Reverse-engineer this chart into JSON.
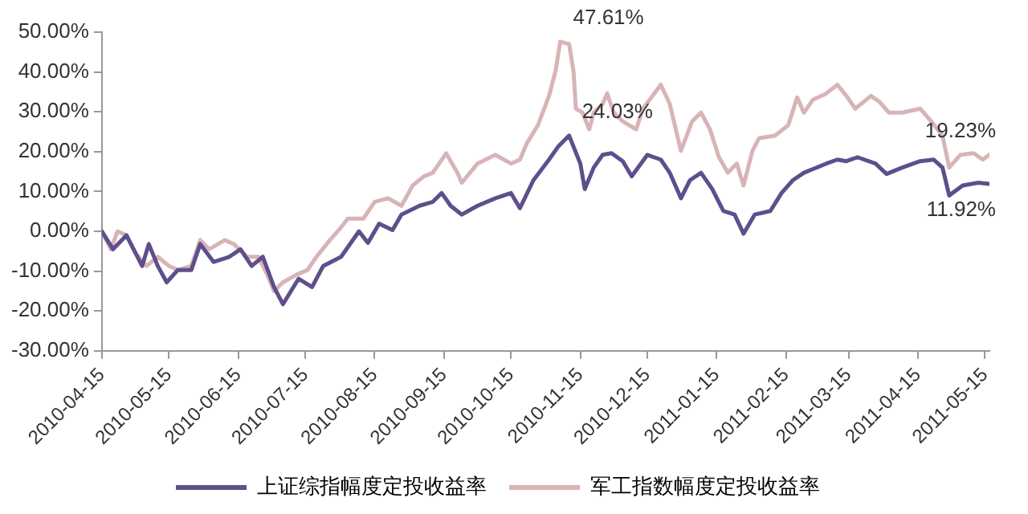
{
  "chart_data": {
    "type": "line",
    "xlim": [
      "2010-04-15",
      "2011-05-17"
    ],
    "xticks": [
      "2010-04-15",
      "2010-05-15",
      "2010-06-15",
      "2010-07-15",
      "2010-08-15",
      "2010-09-15",
      "2010-10-15",
      "2010-11-15",
      "2010-12-15",
      "2011-01-15",
      "2011-02-15",
      "2011-03-15",
      "2011-04-15",
      "2011-05-15"
    ],
    "ylim": [
      -30,
      50
    ],
    "yticks": [
      {
        "value": -30,
        "label": "-30.00%"
      },
      {
        "value": -20,
        "label": "-20.00%"
      },
      {
        "value": -10,
        "label": "-10.00%"
      },
      {
        "value": 0,
        "label": "0.00%"
      },
      {
        "value": 10,
        "label": "10.00%"
      },
      {
        "value": 20,
        "label": "20.00%"
      },
      {
        "value": 30,
        "label": "30.00%"
      },
      {
        "value": 40,
        "label": "40.00%"
      },
      {
        "value": 50,
        "label": "50.00%"
      }
    ],
    "grid": false,
    "legend": "bottom",
    "marker": "none",
    "line_style": "solid",
    "series": [
      {
        "name": "上证综指幅度定投收益率",
        "color": "#5e4f8c",
        "x": [
          "2010-04-15",
          "2010-04-20",
          "2010-04-26",
          "2010-05-03",
          "2010-05-06",
          "2010-05-10",
          "2010-05-14",
          "2010-05-19",
          "2010-05-25",
          "2010-05-29",
          "2010-06-04",
          "2010-06-11",
          "2010-06-16",
          "2010-06-21",
          "2010-06-26",
          "2010-07-01",
          "2010-07-05",
          "2010-07-12",
          "2010-07-18",
          "2010-07-23",
          "2010-07-31",
          "2010-08-08",
          "2010-08-12",
          "2010-08-17",
          "2010-08-23",
          "2010-08-27",
          "2010-09-04",
          "2010-09-10",
          "2010-09-14",
          "2010-09-18",
          "2010-09-23",
          "2010-09-30",
          "2010-10-08",
          "2010-10-15",
          "2010-10-19",
          "2010-10-25",
          "2010-11-01",
          "2010-11-05",
          "2010-11-10",
          "2010-11-12",
          "2010-11-15",
          "2010-11-17",
          "2010-11-21",
          "2010-11-25",
          "2010-11-29",
          "2010-12-04",
          "2010-12-08",
          "2010-12-15",
          "2010-12-21",
          "2010-12-25",
          "2010-12-30",
          "2011-01-03",
          "2011-01-08",
          "2011-01-13",
          "2011-01-18",
          "2011-01-23",
          "2011-01-27",
          "2011-02-01",
          "2011-02-08",
          "2011-02-13",
          "2011-02-18",
          "2011-02-23",
          "2011-03-05",
          "2011-03-10",
          "2011-03-14",
          "2011-03-19",
          "2011-03-27",
          "2011-04-01",
          "2011-04-08",
          "2011-04-16",
          "2011-04-22",
          "2011-04-26",
          "2011-04-29",
          "2011-05-05",
          "2011-05-12",
          "2011-05-17"
        ],
        "values": [
          0,
          -4.5,
          -1,
          -8.7,
          -3.2,
          -8.7,
          -12.8,
          -9.7,
          -9.7,
          -3.2,
          -7.7,
          -6.4,
          -4.5,
          -8.7,
          -6.4,
          -14,
          -18.3,
          -11.9,
          -14,
          -8.7,
          -6.4,
          0,
          -2.9,
          1.9,
          0.3,
          4.2,
          6.4,
          7.4,
          9.6,
          6.4,
          4.2,
          6.4,
          8.3,
          9.6,
          5.8,
          12.8,
          18,
          21.2,
          24.03,
          21.2,
          17,
          10.6,
          16,
          19.2,
          19.6,
          17.6,
          13.8,
          19.2,
          18,
          14.7,
          8.3,
          12.8,
          14.7,
          10.6,
          5.1,
          4.2,
          -0.6,
          4.2,
          5.1,
          9.6,
          12.8,
          14.7,
          17,
          18,
          17.6,
          18.6,
          17,
          14.4,
          16,
          17.6,
          18,
          16,
          9,
          11.5,
          12.2,
          11.92
        ]
      },
      {
        "name": "军工指数幅度定投收益率",
        "color": "#d8b4b7",
        "x": [
          "2010-04-15",
          "2010-04-19",
          "2010-04-22",
          "2010-04-26",
          "2010-04-30",
          "2010-05-05",
          "2010-05-10",
          "2010-05-15",
          "2010-05-19",
          "2010-05-25",
          "2010-05-29",
          "2010-06-02",
          "2010-06-09",
          "2010-06-13",
          "2010-06-19",
          "2010-06-24",
          "2010-06-28",
          "2010-07-01",
          "2010-07-05",
          "2010-07-11",
          "2010-07-16",
          "2010-07-20",
          "2010-07-26",
          "2010-07-31",
          "2010-08-03",
          "2010-08-10",
          "2010-08-15",
          "2010-08-21",
          "2010-08-27",
          "2010-09-01",
          "2010-09-06",
          "2010-09-10",
          "2010-09-16",
          "2010-09-21",
          "2010-09-23",
          "2010-09-30",
          "2010-10-08",
          "2010-10-15",
          "2010-10-19",
          "2010-10-22",
          "2010-10-27",
          "2010-11-01",
          "2010-11-04",
          "2010-11-06",
          "2010-11-10",
          "2010-11-12",
          "2010-11-13",
          "2010-11-16",
          "2010-11-19",
          "2010-11-21",
          "2010-11-25",
          "2010-11-27",
          "2010-11-30",
          "2010-12-04",
          "2010-12-10",
          "2010-12-13",
          "2010-12-16",
          "2010-12-21",
          "2010-12-25",
          "2010-12-30",
          "2011-01-04",
          "2011-01-08",
          "2011-01-12",
          "2011-01-16",
          "2011-01-20",
          "2011-01-24",
          "2011-01-27",
          "2011-01-31",
          "2011-02-03",
          "2011-02-10",
          "2011-02-16",
          "2011-02-20",
          "2011-02-23",
          "2011-02-27",
          "2011-03-05",
          "2011-03-10",
          "2011-03-14",
          "2011-03-18",
          "2011-03-25",
          "2011-03-29",
          "2011-04-02",
          "2011-04-08",
          "2011-04-16",
          "2011-04-21",
          "2011-04-26",
          "2011-04-29",
          "2011-05-04",
          "2011-05-10",
          "2011-05-14",
          "2011-05-17"
        ],
        "values": [
          0,
          -4.5,
          0,
          -1,
          -5.5,
          -8.7,
          -6.4,
          -8.7,
          -9.7,
          -8.7,
          -2.2,
          -4.5,
          -2.2,
          -3.2,
          -6.4,
          -6.4,
          -10.9,
          -15,
          -12.8,
          -10.9,
          -9.7,
          -6.4,
          -2.2,
          1,
          3.2,
          3.2,
          7.4,
          8.3,
          6.4,
          11.5,
          13.8,
          14.7,
          19.6,
          14.7,
          12.2,
          17,
          19.2,
          17,
          18,
          22,
          26.6,
          34,
          40.4,
          47.61,
          47,
          40,
          30.8,
          29.8,
          25.6,
          29.8,
          32,
          34.6,
          29.8,
          27.6,
          25.6,
          30.8,
          33,
          36.8,
          32,
          20.2,
          27.6,
          29.8,
          25.6,
          18.6,
          14.7,
          17,
          11.5,
          20.2,
          23.4,
          24,
          26.6,
          33.6,
          29.8,
          33,
          34.6,
          36.8,
          34,
          30.8,
          34,
          32.4,
          29.8,
          29.8,
          30.8,
          27.6,
          24,
          16,
          19.2,
          19.6,
          18,
          19.23
        ]
      }
    ],
    "annotations": [
      {
        "text": "47.61%",
        "x": "2010-11-06",
        "y": 47.61
      },
      {
        "text": "24.03%",
        "x": "2010-11-10",
        "y": 24.03
      },
      {
        "text": "19.23%",
        "x": "2011-05-17",
        "y": 19.23
      },
      {
        "text": "11.92%",
        "x": "2011-05-17",
        "y": 11.92
      }
    ]
  }
}
